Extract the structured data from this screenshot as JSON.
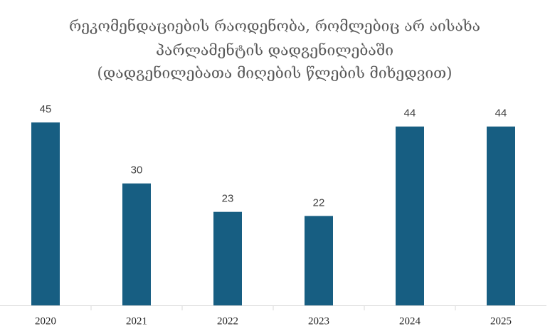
{
  "chart_data": {
    "type": "bar",
    "title": [
      "რეკომენდაციების რაოდენობა, რომლებიც არ აისახა",
      "პარლამენტის დადგენილებაში",
      "(დადგენილებათა მიღების წლების მიხედვით)"
    ],
    "categories": [
      "2020",
      "2021",
      "2022",
      "2023",
      "2024",
      "2025"
    ],
    "values": [
      45,
      30,
      23,
      22,
      44,
      44
    ],
    "color": "#175e82",
    "ylim": [
      0,
      45
    ]
  }
}
